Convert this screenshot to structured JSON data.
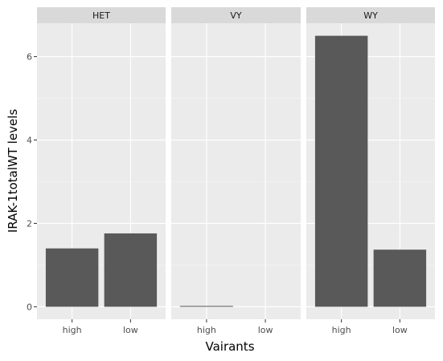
{
  "chart_data": {
    "type": "bar",
    "xlabel": "Vairants",
    "ylabel": "IRAK-1totalWT levels",
    "ylim": [
      -0.3,
      6.8
    ],
    "y_ticks": [
      0,
      2,
      4,
      6
    ],
    "y_tick_labels": [
      "0",
      "2",
      "4",
      "6"
    ],
    "categories": [
      "high",
      "low"
    ],
    "grid": true,
    "legend": "none",
    "facets": [
      {
        "name": "HET",
        "values": [
          1.4,
          1.76
        ]
      },
      {
        "name": "VY",
        "values": [
          0.02,
          0.0
        ]
      },
      {
        "name": "WY",
        "values": [
          6.5,
          1.37
        ]
      }
    ]
  }
}
